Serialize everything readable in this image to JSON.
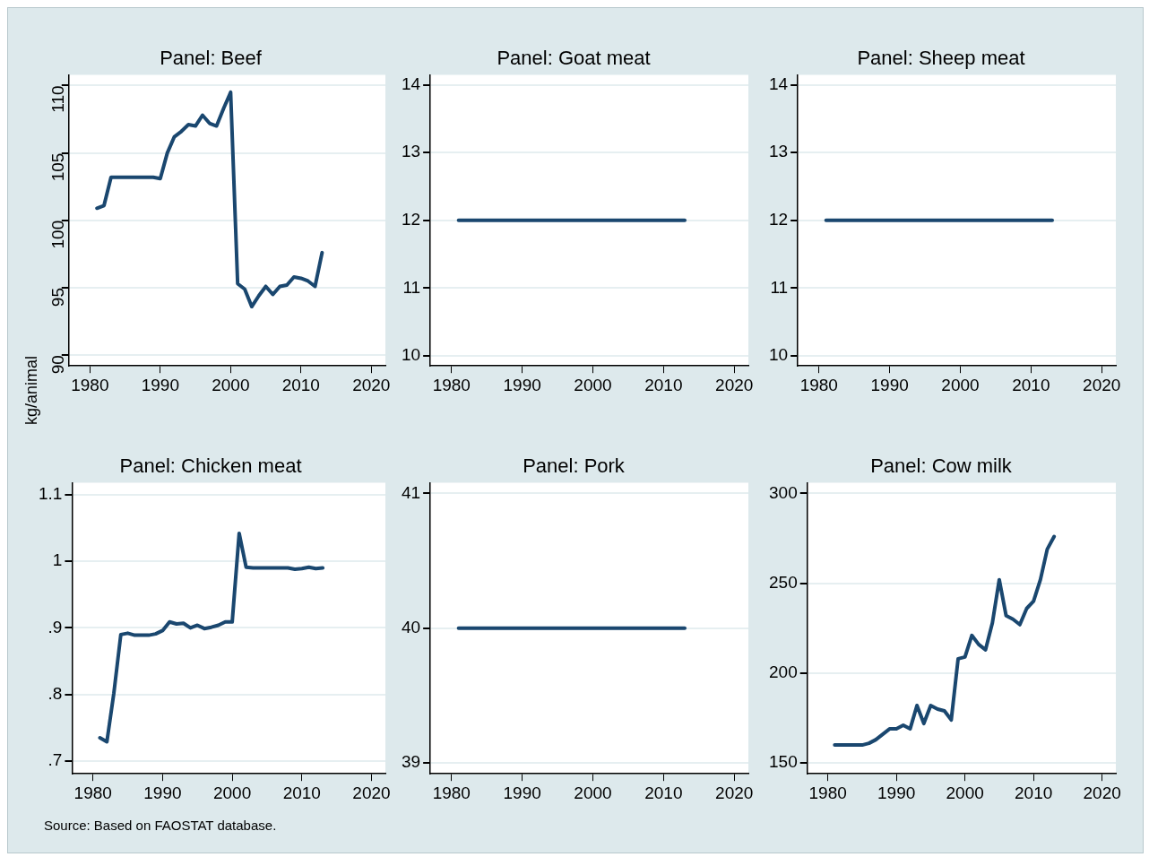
{
  "chart_data": [
    {
      "type": "line",
      "title": "Panel: Beef",
      "ylabel": "kg/animal",
      "x": [
        1981,
        1982,
        1983,
        1984,
        1985,
        1986,
        1987,
        1988,
        1989,
        1990,
        1991,
        1992,
        1993,
        1994,
        1995,
        1996,
        1997,
        1998,
        1999,
        2000,
        2001,
        2002,
        2003,
        2004,
        2005,
        2006,
        2007,
        2008,
        2009,
        2010,
        2011,
        2012,
        2013
      ],
      "series": [
        {
          "color": "#1a476f",
          "values": [
            100.9,
            101.1,
            103.2,
            103.2,
            103.2,
            103.2,
            103.2,
            103.2,
            103.2,
            103.1,
            105.0,
            106.2,
            106.6,
            107.1,
            107.0,
            107.8,
            107.2,
            107.0,
            108.3,
            109.5,
            95.3,
            94.9,
            93.6,
            94.4,
            95.1,
            94.5,
            95.1,
            95.2,
            95.8,
            95.7,
            95.5,
            95.1,
            97.6
          ]
        }
      ],
      "xlim": [
        1977,
        2022
      ],
      "xticks": [
        1980,
        1990,
        2000,
        2010,
        2020
      ],
      "ylim": [
        89.2,
        110.8
      ],
      "yticks": [
        90,
        95,
        100,
        105,
        110
      ],
      "grid": "y",
      "legend": false
    },
    {
      "type": "line",
      "title": "Panel: Goat meat",
      "x": [
        1981,
        2013
      ],
      "series": [
        {
          "color": "#1a476f",
          "values": [
            12,
            12
          ]
        }
      ],
      "xlim": [
        1977,
        2022
      ],
      "xticks": [
        1980,
        1990,
        2000,
        2010,
        2020
      ],
      "ylim": [
        9.85,
        14.15
      ],
      "yticks": [
        10,
        11,
        12,
        13,
        14
      ],
      "grid": "y",
      "legend": false
    },
    {
      "type": "line",
      "title": "Panel: Sheep meat",
      "x": [
        1981,
        2013
      ],
      "series": [
        {
          "color": "#1a476f",
          "values": [
            12,
            12
          ]
        }
      ],
      "xlim": [
        1977,
        2022
      ],
      "xticks": [
        1980,
        1990,
        2000,
        2010,
        2020
      ],
      "ylim": [
        9.85,
        14.15
      ],
      "yticks": [
        10,
        11,
        12,
        13,
        14
      ],
      "grid": "y",
      "legend": false
    },
    {
      "type": "line",
      "title": "Panel: Chicken meat",
      "annotations": [
        "Source:  Based on FAOSTAT database."
      ],
      "x": [
        1981,
        1982,
        1983,
        1984,
        1985,
        1986,
        1987,
        1988,
        1989,
        1990,
        1991,
        1992,
        1993,
        1994,
        1995,
        1996,
        1997,
        1998,
        1999,
        2000,
        2001,
        2002,
        2003,
        2004,
        2005,
        2006,
        2007,
        2008,
        2009,
        2010,
        2011,
        2012,
        2013
      ],
      "series": [
        {
          "color": "#1a476f",
          "values": [
            0.735,
            0.729,
            0.802,
            0.89,
            0.892,
            0.889,
            0.889,
            0.889,
            0.891,
            0.896,
            0.909,
            0.906,
            0.907,
            0.9,
            0.904,
            0.899,
            0.901,
            0.904,
            0.909,
            0.909,
            1.042,
            0.991,
            0.99,
            0.99,
            0.99,
            0.99,
            0.99,
            0.99,
            0.988,
            0.989,
            0.991,
            0.989,
            0.99
          ]
        }
      ],
      "xlim": [
        1977,
        2022
      ],
      "xticks": [
        1980,
        1990,
        2000,
        2010,
        2020
      ],
      "ylim": [
        0.681,
        1.118
      ],
      "yticks": [
        {
          "value": 0.7,
          "label": ".7"
        },
        {
          "value": 0.8,
          "label": ".8"
        },
        {
          "value": 0.9,
          "label": ".9"
        },
        1,
        1.1
      ],
      "grid": "y",
      "legend": false
    },
    {
      "type": "line",
      "title": "Panel: Pork",
      "x": [
        1981,
        2013
      ],
      "series": [
        {
          "color": "#1a476f",
          "values": [
            40,
            40
          ]
        }
      ],
      "xlim": [
        1977,
        2022
      ],
      "xticks": [
        1980,
        1990,
        2000,
        2010,
        2020
      ],
      "ylim": [
        38.92,
        41.08
      ],
      "yticks": [
        39,
        40,
        41
      ],
      "grid": "y",
      "legend": false
    },
    {
      "type": "line",
      "title": "Panel: Cow milk",
      "x": [
        1981,
        1982,
        1983,
        1984,
        1985,
        1986,
        1987,
        1988,
        1989,
        1990,
        1991,
        1992,
        1993,
        1994,
        1995,
        1996,
        1997,
        1998,
        1999,
        2000,
        2001,
        2002,
        2003,
        2004,
        2005,
        2006,
        2007,
        2008,
        2009,
        2010,
        2011,
        2012,
        2013
      ],
      "series": [
        {
          "color": "#1a476f",
          "values": [
            160,
            160,
            160,
            160,
            160,
            161,
            163,
            166,
            169,
            169,
            171,
            169,
            182,
            172,
            182,
            180,
            179,
            174,
            208,
            209,
            221,
            216,
            213,
            228,
            252,
            232,
            230,
            227,
            236,
            240,
            252,
            269,
            276
          ]
        }
      ],
      "xlim": [
        1977,
        2022
      ],
      "xticks": [
        1980,
        1990,
        2000,
        2010,
        2020
      ],
      "ylim": [
        144,
        306
      ],
      "yticks": [
        150,
        200,
        250,
        300
      ],
      "grid": "y",
      "legend": false
    }
  ]
}
